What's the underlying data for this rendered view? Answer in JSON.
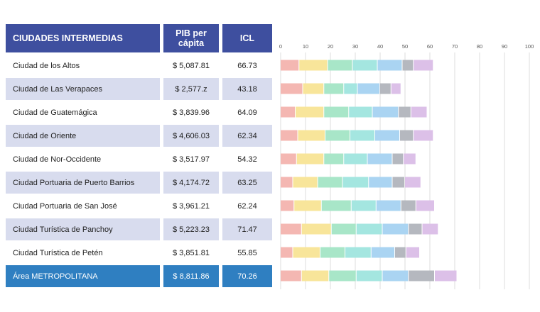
{
  "headers": {
    "city": "CIUDADES INTERMEDIAS",
    "pib": "PIB per cápita",
    "icl": "ICL"
  },
  "rows": [
    {
      "city": "Ciudad de los Altos",
      "pib": "$ 5,087.81",
      "icl": "66.73"
    },
    {
      "city": "Ciudad de Las Verapaces",
      "pib": "$ 2,577.z",
      "icl": "43.18"
    },
    {
      "city": "Ciudad de Guatemágica",
      "pib": "$ 3,839.96",
      "icl": "64.09"
    },
    {
      "city": "Ciudad de Oriente",
      "pib": "$ 4,606.03",
      "icl": "62.34"
    },
    {
      "city": "Ciudad de Nor-Occidente",
      "pib": "$ 3,517.97",
      "icl": "54.32"
    },
    {
      "city": "Ciudad Portuaria de Puerto Barrios",
      "pib": "$ 4,174.72",
      "icl": "63.25"
    },
    {
      "city": "Ciudad Portuaria de San José",
      "pib": "$ 3,961.21",
      "icl": "62.24"
    },
    {
      "city": "Ciudad Turística de Panchoy",
      "pib": "$ 5,223.23",
      "icl": "71.47"
    },
    {
      "city": "Ciudad Turística de Petén",
      "pib": "$ 3,851.81",
      "icl": "55.85"
    },
    {
      "city": "Área METROPOLITANA",
      "pib": "$ 8,811.86",
      "icl": "70.26",
      "highlight": true
    }
  ],
  "chart_data": {
    "type": "bar",
    "orientation": "horizontal",
    "stacked": true,
    "xlim": [
      0,
      100
    ],
    "xticks": [
      0,
      10,
      20,
      30,
      40,
      50,
      60,
      70,
      80,
      90,
      100
    ],
    "grid": true,
    "categories": [
      "Ciudad de los Altos",
      "Ciudad de Las Verapaces",
      "Ciudad de Guatemágica",
      "Ciudad de Oriente",
      "Ciudad de Nor-Occidente",
      "Ciudad Portuaria de Puerto Barrios",
      "Ciudad Portuaria de San José",
      "Ciudad Turística de Panchoy",
      "Ciudad Turística de Petén",
      "Área METROPOLITANA"
    ],
    "colors": [
      "#f4b7b2",
      "#f8e59a",
      "#a8e6c8",
      "#a4e6e0",
      "#aad4f2",
      "#b5b8bf",
      "#dcc0e8"
    ],
    "series": [
      {
        "values": [
          7.5,
          9.0,
          6.0,
          7.0,
          6.5,
          5.0,
          5.5,
          8.5,
          5.0,
          8.5
        ]
      },
      {
        "values": [
          11.5,
          8.5,
          11.5,
          11.0,
          11.0,
          10.0,
          11.0,
          12.0,
          11.0,
          11.0
        ]
      },
      {
        "values": [
          10.0,
          8.0,
          10.0,
          10.0,
          8.0,
          10.0,
          12.0,
          10.0,
          10.0,
          11.0
        ]
      },
      {
        "values": [
          10.0,
          5.5,
          9.5,
          10.0,
          9.5,
          10.5,
          10.0,
          10.5,
          10.5,
          10.5
        ]
      },
      {
        "values": [
          10.0,
          9.0,
          10.5,
          10.0,
          10.0,
          9.5,
          10.0,
          10.5,
          9.5,
          10.5
        ]
      },
      {
        "values": [
          4.5,
          4.5,
          5.0,
          5.5,
          4.5,
          5.0,
          6.0,
          5.5,
          4.5,
          10.5
        ]
      },
      {
        "values": [
          8.0,
          4.0,
          6.5,
          8.0,
          5.0,
          6.5,
          7.5,
          6.5,
          5.5,
          9.0
        ]
      }
    ]
  }
}
